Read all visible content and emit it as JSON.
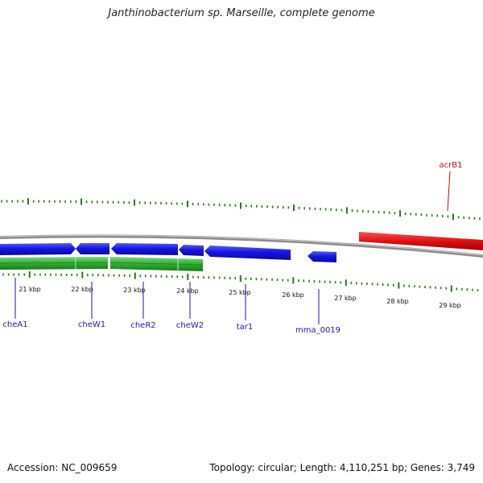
{
  "title": "Janthinobacterium sp. Marseille, complete genome",
  "footer": {
    "accession": "Accession: NC_009659",
    "summary": "Topology: circular; Length: 4,110,251 bp; Genes: 3,749"
  },
  "kbp_labels": [
    "21 kbp",
    "22 kbp",
    "23 kbp",
    "24 kbp",
    "25 kbp",
    "26 kbp",
    "27 kbp",
    "28 kbp",
    "29 kbp"
  ],
  "genes": [
    {
      "name": "cheA1",
      "color": "blue"
    },
    {
      "name": "cheW1",
      "color": "blue"
    },
    {
      "name": "cheR2",
      "color": "blue"
    },
    {
      "name": "cheW2",
      "color": "blue"
    },
    {
      "name": "tar1",
      "color": "blue"
    },
    {
      "name": "mma_0019",
      "color": "blue"
    },
    {
      "name": "acrB1",
      "color": "red"
    }
  ],
  "colors": {
    "forward_gene": "#1515e6",
    "reverse_cds": "#2fae2f",
    "highlight_gene": "#e01010",
    "gc_skew_ticks": "#2a7a1a",
    "backbone": "#8c8c8c"
  }
}
